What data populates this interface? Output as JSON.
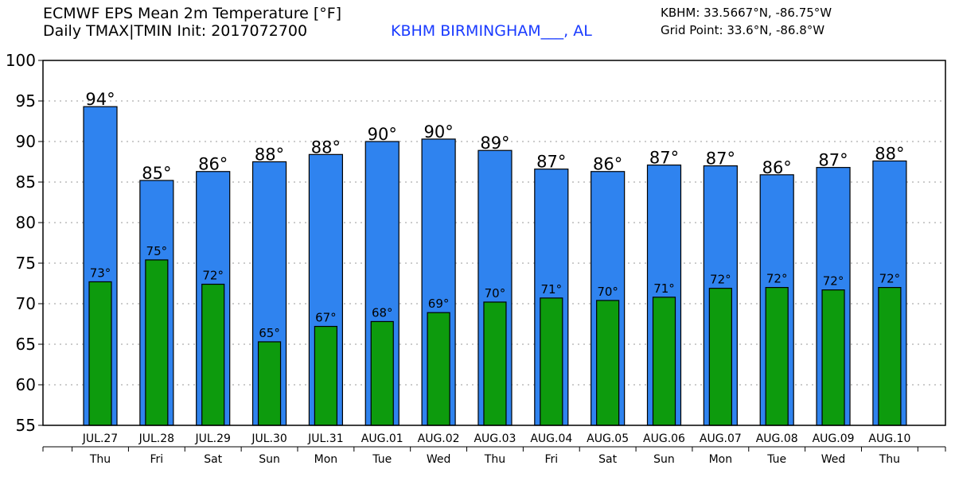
{
  "header": {
    "title": "ECMWF EPS Mean 2m Temperature [°F]",
    "subtitle": "Daily TMAX|TMIN Init: 2017072700",
    "station_name": "KBHM BIRMINGHAM___, AL",
    "station_coords": "KBHM: 33.5667°N, -86.75°W",
    "grid_point": "Grid Point: 33.6°N, -86.8°W"
  },
  "colors": {
    "tmax_bar": "#2f83ef",
    "tmin_bar": "#0d9b0d",
    "station_text": "#1a3bff"
  },
  "chart_data": {
    "type": "bar",
    "title": "ECMWF EPS Mean 2m Temperature [°F]",
    "ylabel": "",
    "xlabel": "",
    "ylim": [
      55,
      100
    ],
    "yticks": [
      55,
      60,
      65,
      70,
      75,
      80,
      85,
      90,
      95,
      100
    ],
    "grid": true,
    "categories": [
      "JUL.27",
      "JUL.28",
      "JUL.29",
      "JUL.30",
      "JUL.31",
      "AUG.01",
      "AUG.02",
      "AUG.03",
      "AUG.04",
      "AUG.05",
      "AUG.06",
      "AUG.07",
      "AUG.08",
      "AUG.09",
      "AUG.10"
    ],
    "days": [
      "Thu",
      "Fri",
      "Sat",
      "Sun",
      "Mon",
      "Tue",
      "Wed",
      "Thu",
      "Fri",
      "Sat",
      "Sun",
      "Mon",
      "Tue",
      "Wed",
      "Thu"
    ],
    "series": [
      {
        "name": "TMAX",
        "values": [
          94.3,
          85.2,
          86.3,
          87.5,
          88.4,
          90.0,
          90.3,
          88.9,
          86.6,
          86.3,
          87.1,
          87.0,
          85.9,
          86.8,
          87.6
        ],
        "labels": [
          "94°",
          "85°",
          "86°",
          "88°",
          "88°",
          "90°",
          "90°",
          "89°",
          "87°",
          "86°",
          "87°",
          "87°",
          "86°",
          "87°",
          "88°"
        ]
      },
      {
        "name": "TMIN",
        "values": [
          72.7,
          75.4,
          72.4,
          65.3,
          67.2,
          67.8,
          68.9,
          70.2,
          70.7,
          70.4,
          70.8,
          71.9,
          72.0,
          71.7,
          72.0
        ],
        "labels": [
          "73°",
          "75°",
          "72°",
          "65°",
          "67°",
          "68°",
          "69°",
          "70°",
          "71°",
          "70°",
          "71°",
          "72°",
          "72°",
          "72°",
          "72°"
        ]
      }
    ]
  }
}
